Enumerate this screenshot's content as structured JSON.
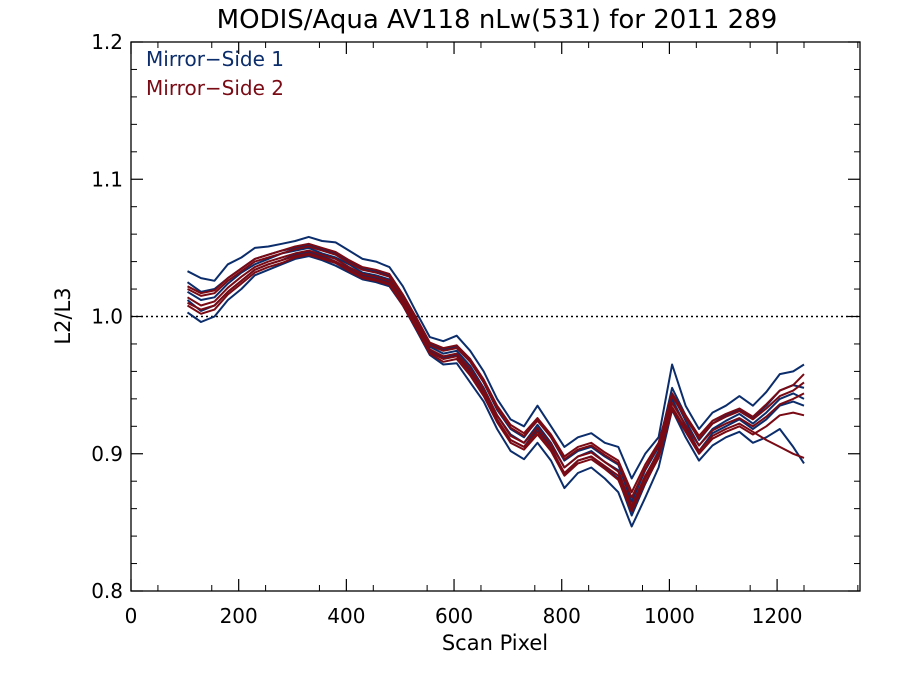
{
  "chart_data": {
    "type": "line",
    "title": "MODIS/Aqua AV118 nLw(531) for 2011 289",
    "xlabel": "Scan Pixel",
    "ylabel": "L2/L3",
    "xlim": [
      0,
      1354
    ],
    "ylim": [
      0.8,
      1.2
    ],
    "x_ticks": [
      "0",
      "200",
      "400",
      "600",
      "800",
      "1000",
      "1200"
    ],
    "y_ticks": [
      "0.8",
      "0.9",
      "1.0",
      "1.1",
      "1.2"
    ],
    "reference_line": 1.0,
    "legend_position": "top-left",
    "grid": false,
    "colors": {
      "mirror_side_1": "#0b2d6b",
      "mirror_side_2": "#7a0a14"
    },
    "legend": [
      "Mirror−Side 1",
      "Mirror−Side 2"
    ],
    "x": [
      105,
      130,
      155,
      180,
      205,
      230,
      255,
      280,
      305,
      330,
      355,
      380,
      405,
      430,
      455,
      480,
      505,
      530,
      555,
      580,
      605,
      630,
      655,
      680,
      705,
      730,
      755,
      780,
      805,
      830,
      855,
      880,
      905,
      930,
      955,
      980,
      1005,
      1030,
      1055,
      1080,
      1105,
      1130,
      1155,
      1180,
      1205,
      1230,
      1250
    ],
    "series": [
      {
        "group": "mirror_side_1",
        "values": [
          1.033,
          1.028,
          1.026,
          1.038,
          1.043,
          1.05,
          1.051,
          1.053,
          1.055,
          1.058,
          1.055,
          1.054,
          1.048,
          1.042,
          1.04,
          1.036,
          1.022,
          1.003,
          0.985,
          0.982,
          0.986,
          0.975,
          0.96,
          0.94,
          0.925,
          0.92,
          0.935,
          0.92,
          0.905,
          0.912,
          0.915,
          0.908,
          0.905,
          0.882,
          0.9,
          0.912,
          0.965,
          0.935,
          0.918,
          0.93,
          0.935,
          0.942,
          0.935,
          0.945,
          0.958,
          0.96,
          0.965
        ]
      },
      {
        "group": "mirror_side_1",
        "values": [
          1.025,
          1.018,
          1.02,
          1.028,
          1.035,
          1.042,
          1.045,
          1.048,
          1.05,
          1.052,
          1.049,
          1.046,
          1.04,
          1.035,
          1.033,
          1.03,
          1.015,
          0.998,
          0.98,
          0.976,
          0.978,
          0.968,
          0.952,
          0.932,
          0.918,
          0.912,
          0.925,
          0.912,
          0.895,
          0.902,
          0.905,
          0.898,
          0.892,
          0.865,
          0.888,
          0.905,
          0.948,
          0.928,
          0.91,
          0.922,
          0.928,
          0.932,
          0.926,
          0.935,
          0.946,
          0.95,
          0.948
        ]
      },
      {
        "group": "mirror_side_1",
        "values": [
          1.012,
          1.004,
          1.008,
          1.018,
          1.026,
          1.034,
          1.038,
          1.041,
          1.045,
          1.047,
          1.044,
          1.04,
          1.035,
          1.03,
          1.028,
          1.025,
          1.01,
          0.993,
          0.975,
          0.97,
          0.972,
          0.96,
          0.945,
          0.925,
          0.91,
          0.905,
          0.918,
          0.905,
          0.885,
          0.895,
          0.898,
          0.89,
          0.882,
          0.855,
          0.878,
          0.898,
          0.94,
          0.92,
          0.902,
          0.915,
          0.92,
          0.925,
          0.918,
          0.925,
          0.935,
          0.938,
          0.935
        ]
      },
      {
        "group": "mirror_side_1",
        "values": [
          1.003,
          0.996,
          1.0,
          1.012,
          1.02,
          1.03,
          1.034,
          1.038,
          1.042,
          1.044,
          1.041,
          1.037,
          1.032,
          1.027,
          1.025,
          1.022,
          1.008,
          0.99,
          0.972,
          0.965,
          0.966,
          0.952,
          0.938,
          0.918,
          0.902,
          0.896,
          0.908,
          0.895,
          0.875,
          0.886,
          0.89,
          0.882,
          0.872,
          0.847,
          0.868,
          0.89,
          0.932,
          0.912,
          0.895,
          0.906,
          0.912,
          0.916,
          0.908,
          0.912,
          0.918,
          0.905,
          0.893
        ]
      },
      {
        "group": "mirror_side_1",
        "values": [
          1.018,
          1.012,
          1.014,
          1.024,
          1.032,
          1.038,
          1.042,
          1.046,
          1.048,
          1.05,
          1.046,
          1.043,
          1.038,
          1.032,
          1.03,
          1.027,
          1.012,
          0.996,
          0.978,
          0.973,
          0.975,
          0.964,
          0.948,
          0.928,
          0.914,
          0.908,
          0.921,
          0.908,
          0.89,
          0.898,
          0.902,
          0.894,
          0.888,
          0.86,
          0.883,
          0.902,
          0.944,
          0.924,
          0.906,
          0.918,
          0.924,
          0.929,
          0.922,
          0.93,
          0.94,
          0.944,
          0.94
        ]
      },
      {
        "group": "mirror_side_2",
        "values": [
          1.02,
          1.015,
          1.017,
          1.026,
          1.033,
          1.04,
          1.043,
          1.046,
          1.049,
          1.051,
          1.048,
          1.045,
          1.039,
          1.034,
          1.032,
          1.029,
          1.014,
          0.997,
          0.979,
          0.975,
          0.977,
          0.967,
          0.952,
          0.933,
          0.919,
          0.913,
          0.924,
          0.912,
          0.896,
          0.903,
          0.906,
          0.899,
          0.893,
          0.868,
          0.889,
          0.906,
          0.942,
          0.926,
          0.911,
          0.922,
          0.927,
          0.931,
          0.925,
          0.933,
          0.942,
          0.946,
          0.952
        ]
      },
      {
        "group": "mirror_side_2",
        "values": [
          1.014,
          1.008,
          1.011,
          1.021,
          1.029,
          1.036,
          1.04,
          1.043,
          1.046,
          1.048,
          1.045,
          1.042,
          1.036,
          1.031,
          1.029,
          1.026,
          1.011,
          0.994,
          0.976,
          0.971,
          0.973,
          0.962,
          0.947,
          0.928,
          0.913,
          0.908,
          0.919,
          0.907,
          0.89,
          0.898,
          0.901,
          0.894,
          0.887,
          0.862,
          0.884,
          0.901,
          0.937,
          0.921,
          0.906,
          0.917,
          0.922,
          0.926,
          0.92,
          0.927,
          0.936,
          0.94,
          0.944
        ]
      },
      {
        "group": "mirror_side_2",
        "values": [
          1.008,
          1.002,
          1.005,
          1.016,
          1.024,
          1.032,
          1.036,
          1.039,
          1.043,
          1.045,
          1.042,
          1.039,
          1.033,
          1.028,
          1.026,
          1.023,
          1.008,
          0.991,
          0.973,
          0.967,
          0.969,
          0.957,
          0.942,
          0.923,
          0.908,
          0.903,
          0.914,
          0.902,
          0.884,
          0.893,
          0.896,
          0.889,
          0.881,
          0.858,
          0.879,
          0.897,
          0.932,
          0.916,
          0.9,
          0.911,
          0.916,
          0.92,
          0.914,
          0.92,
          0.928,
          0.93,
          0.928
        ]
      },
      {
        "group": "mirror_side_2",
        "values": [
          1.022,
          1.017,
          1.019,
          1.028,
          1.035,
          1.042,
          1.045,
          1.048,
          1.051,
          1.053,
          1.05,
          1.047,
          1.041,
          1.036,
          1.034,
          1.031,
          1.016,
          0.999,
          0.981,
          0.977,
          0.979,
          0.969,
          0.954,
          0.935,
          0.921,
          0.915,
          0.926,
          0.914,
          0.898,
          0.905,
          0.908,
          0.901,
          0.895,
          0.872,
          0.892,
          0.908,
          0.944,
          0.928,
          0.913,
          0.924,
          0.929,
          0.933,
          0.927,
          0.936,
          0.946,
          0.95,
          0.958
        ]
      },
      {
        "group": "mirror_side_2",
        "values": [
          1.01,
          1.005,
          1.008,
          1.018,
          1.026,
          1.034,
          1.038,
          1.041,
          1.044,
          1.046,
          1.043,
          1.04,
          1.034,
          1.029,
          1.027,
          1.024,
          1.009,
          0.992,
          0.974,
          0.969,
          0.971,
          0.959,
          0.944,
          0.925,
          0.91,
          0.905,
          0.916,
          0.904,
          0.886,
          0.895,
          0.898,
          0.891,
          0.884,
          0.861,
          0.882,
          0.899,
          0.934,
          0.918,
          0.902,
          0.913,
          0.918,
          0.922,
          0.916,
          0.91,
          0.905,
          0.9,
          0.897
        ]
      }
    ]
  }
}
